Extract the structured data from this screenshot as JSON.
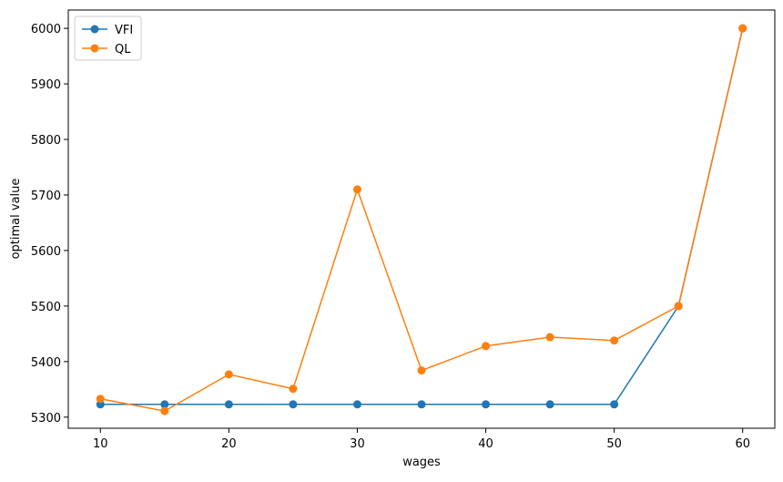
{
  "chart_data": {
    "type": "line",
    "xlabel": "wages",
    "ylabel": "optimal value",
    "x": [
      10,
      15,
      20,
      25,
      30,
      35,
      40,
      45,
      50,
      55,
      60
    ],
    "series": [
      {
        "name": "VFI",
        "color": "#1f77b4",
        "values": [
          5323,
          5323,
          5323,
          5323,
          5323,
          5323,
          5323,
          5323,
          5323,
          5500,
          6000
        ]
      },
      {
        "name": "QL",
        "color": "#ff7f0e",
        "values": [
          5333,
          5311,
          5377,
          5351,
          5710,
          5384,
          5428,
          5444,
          5438,
          5500,
          6000
        ]
      }
    ],
    "xlim": [
      7.5,
      62.5
    ],
    "xticks": [
      10,
      20,
      30,
      40,
      50,
      60
    ],
    "ylim": [
      5280,
      6033
    ],
    "yticks": [
      5300,
      5400,
      5500,
      5600,
      5700,
      5800,
      5900,
      6000
    ],
    "grid": false,
    "legend": "upper-left",
    "markers": true
  }
}
